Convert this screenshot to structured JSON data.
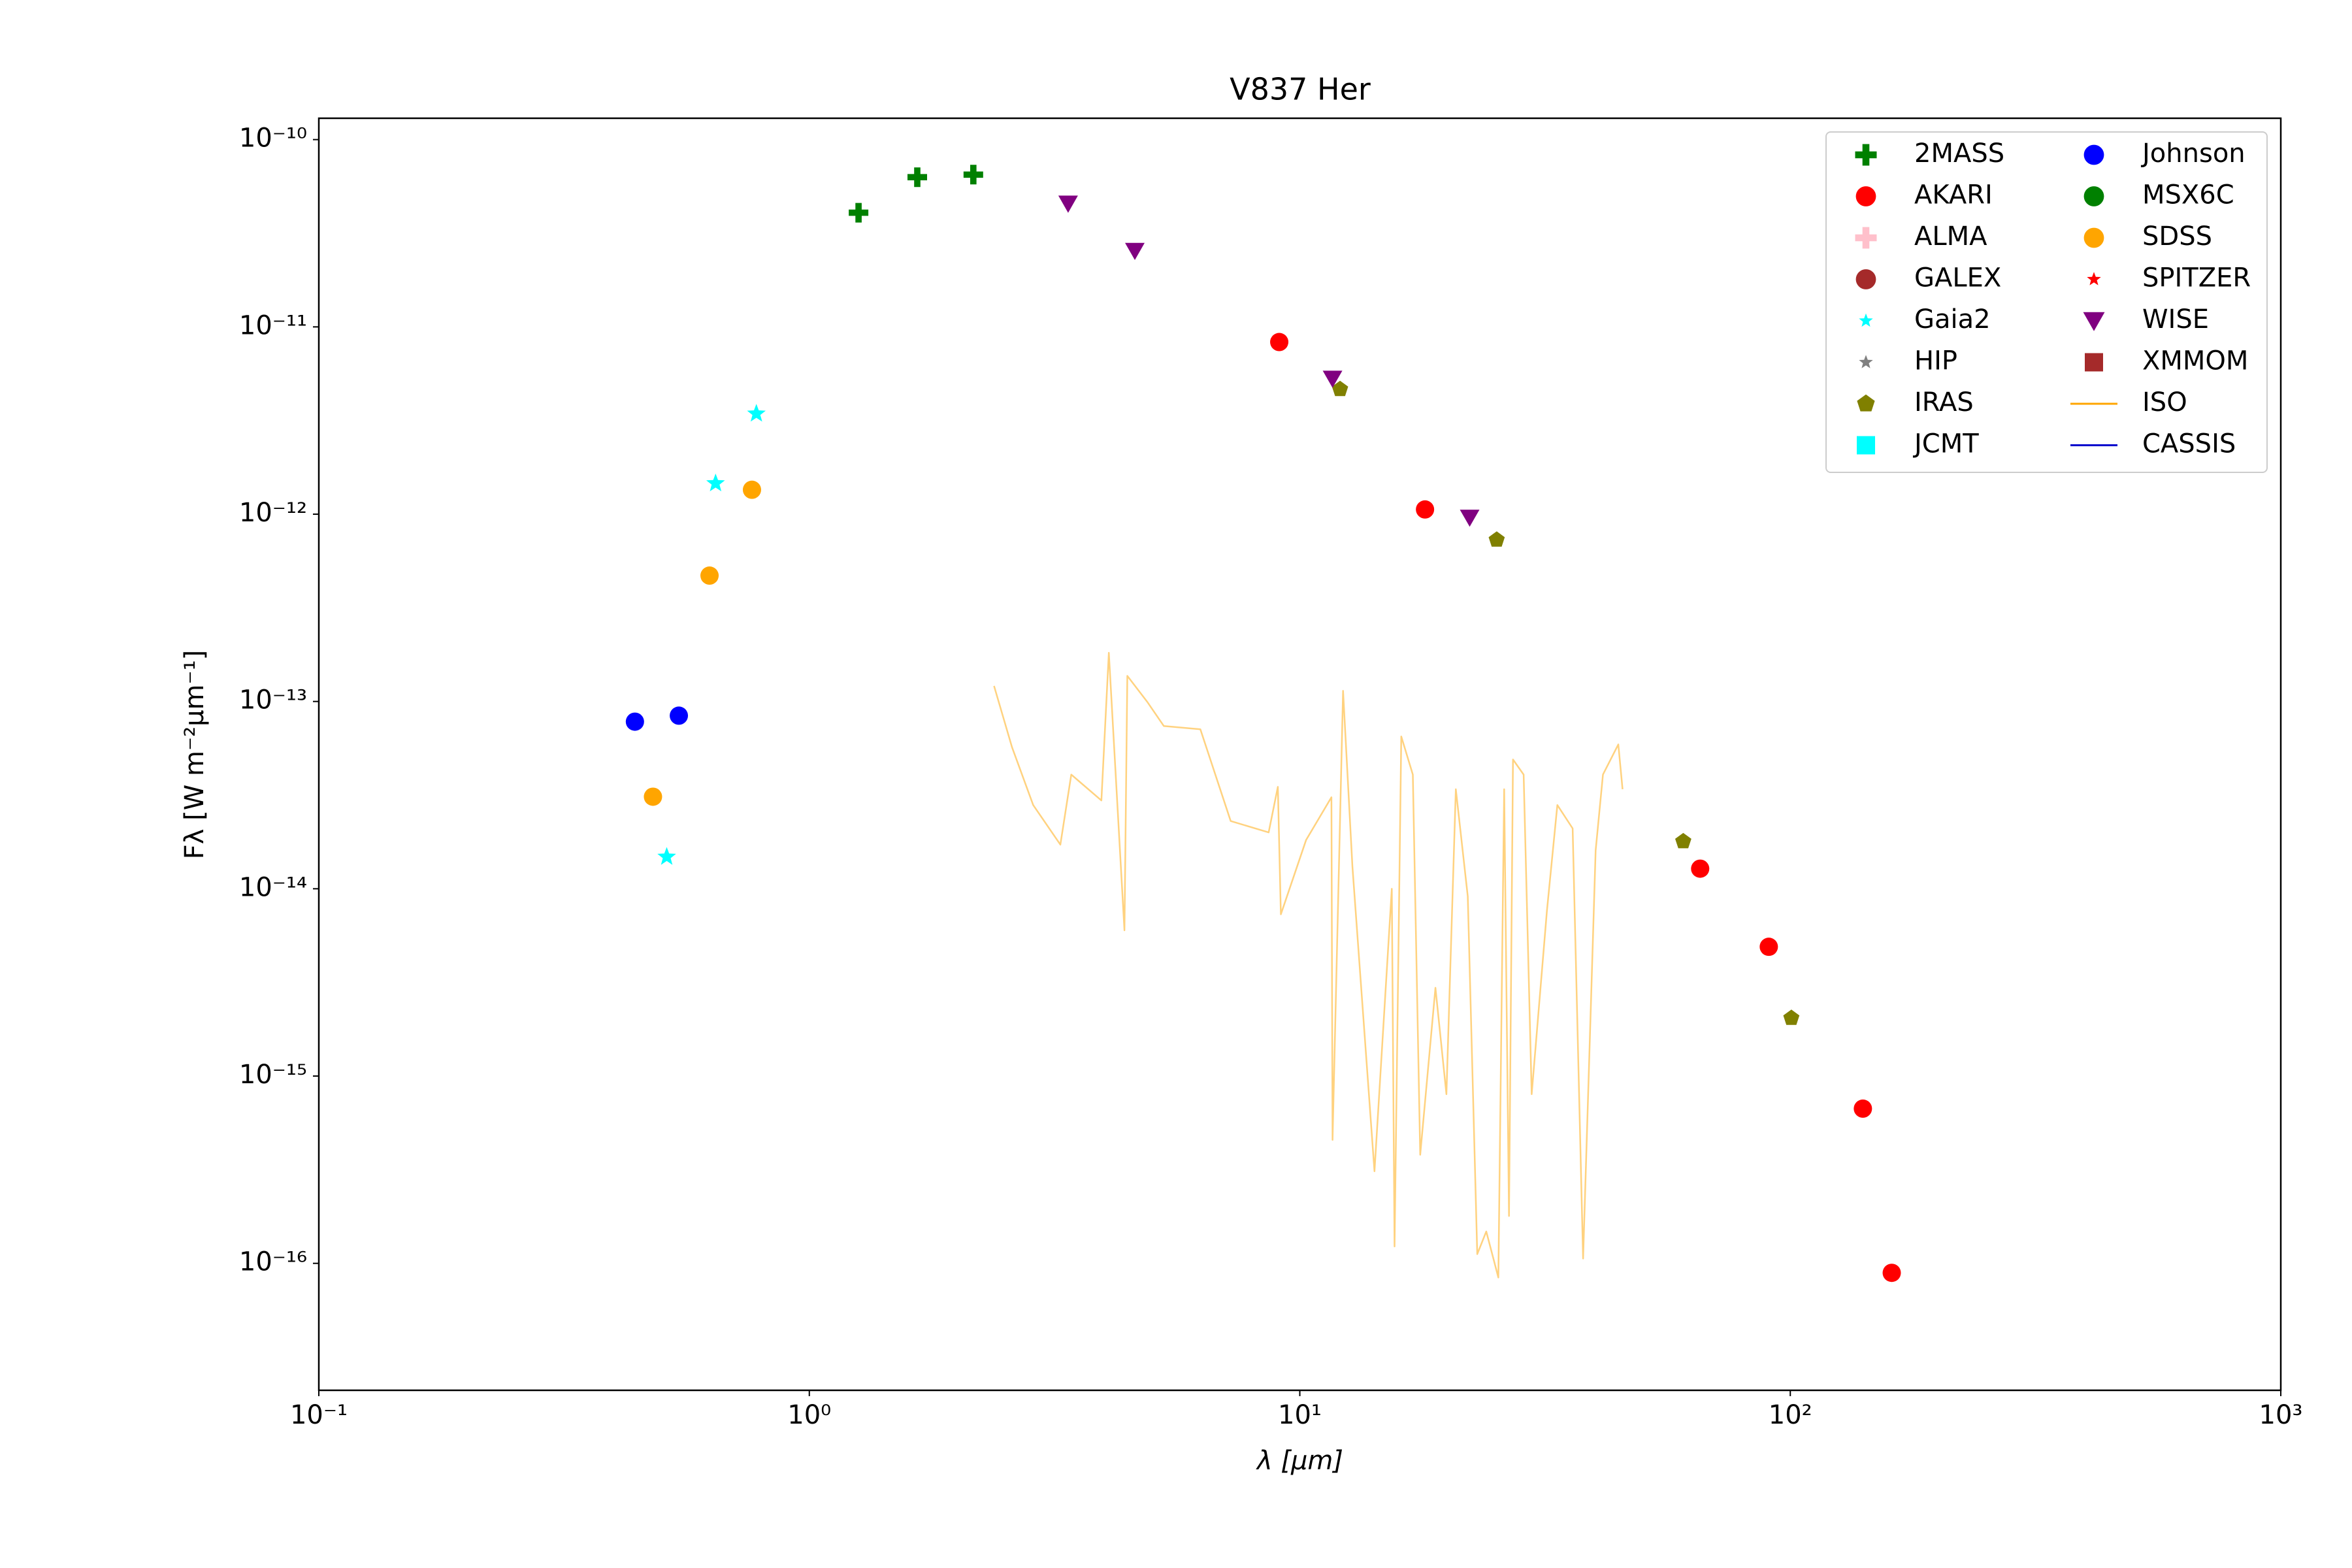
{
  "chart_data": {
    "type": "scatter",
    "title": "V837 Her",
    "xlabel": "λ [μm]",
    "ylabel": "Fλ [W m⁻²μm⁻¹]",
    "xscale": "log",
    "yscale": "log",
    "legend": "upper right",
    "legend_columns": 2,
    "xlim": [
      0.1,
      1000
    ],
    "ylim": [
      2.1e-17,
      1.3e-10
    ],
    "xticks": [
      {
        "value": 0.1,
        "label": "10⁻¹"
      },
      {
        "value": 1,
        "label": "10⁰"
      },
      {
        "value": 10,
        "label": "10¹"
      },
      {
        "value": 100,
        "label": "10²"
      },
      {
        "value": 1000,
        "label": "10³"
      }
    ],
    "yticks": [
      {
        "value": 1e-16,
        "label": "10⁻¹⁶"
      },
      {
        "value": 1e-15,
        "label": "10⁻¹⁵"
      },
      {
        "value": 1e-14,
        "label": "10⁻¹⁴"
      },
      {
        "value": 1e-13,
        "label": "10⁻¹³"
      },
      {
        "value": 1e-12,
        "label": "10⁻¹²"
      },
      {
        "value": 1e-11,
        "label": "10⁻¹¹"
      },
      {
        "value": 1e-10,
        "label": "10⁻¹⁰"
      }
    ],
    "series": [
      {
        "name": "2MASS",
        "color": "#008000",
        "marker": "plus",
        "x": [
          1.26,
          1.66,
          2.16
        ],
        "values": [
          4.07e-11,
          6.3e-11,
          6.5e-11
        ]
      },
      {
        "name": "AKARI",
        "color": "#ff0000",
        "marker": "circle",
        "x": [
          9.08,
          18.0,
          65.5,
          90.4,
          140.6,
          161
        ],
        "values": [
          8.3e-12,
          1.06e-12,
          1.28e-14,
          4.9e-15,
          6.7e-16,
          8.9e-17
        ]
      },
      {
        "name": "ALMA",
        "color": "#ffc0cb",
        "marker": "plus",
        "x": [],
        "values": []
      },
      {
        "name": "GALEX",
        "color": "#a52a2a",
        "marker": "circle",
        "x": [],
        "values": []
      },
      {
        "name": "Gaia2",
        "color": "#00ffff",
        "marker": "star",
        "x": [
          0.512,
          0.644,
          0.78
        ],
        "values": [
          1.48e-14,
          1.46e-12,
          3.44e-12
        ]
      },
      {
        "name": "HIP",
        "color": "#808080",
        "marker": "star",
        "x": [],
        "values": []
      },
      {
        "name": "IRAS",
        "color": "#808000",
        "marker": "pentagon",
        "x": [
          12.08,
          25.2,
          60.5,
          100.5
        ],
        "values": [
          4.65e-12,
          7.3e-13,
          1.79e-14,
          2.04e-15
        ]
      },
      {
        "name": "JCMT",
        "color": "#00ffff",
        "marker": "square",
        "x": [],
        "values": []
      },
      {
        "name": "Johnson",
        "color": "#0000ff",
        "marker": "circle",
        "x": [
          0.441,
          0.542
        ],
        "values": [
          7.8e-14,
          8.4e-14
        ]
      },
      {
        "name": "MSX6C",
        "color": "#008000",
        "marker": "circle",
        "x": [],
        "values": []
      },
      {
        "name": "SDSS",
        "color": "#ffa500",
        "marker": "circle",
        "x": [
          0.48,
          0.626,
          0.764
        ],
        "values": [
          3.1e-14,
          4.7e-13,
          1.35e-12
        ]
      },
      {
        "name": "SPITZER",
        "color": "#ff0000",
        "marker": "star",
        "x": [],
        "values": []
      },
      {
        "name": "WISE",
        "color": "#800080",
        "marker": "triangle-down",
        "x": [
          3.37,
          4.61,
          11.66,
          22.2
        ],
        "values": [
          4.56e-11,
          2.55e-11,
          5.3e-12,
          9.6e-13
        ]
      },
      {
        "name": "XMMOM",
        "color": "#a52a2a",
        "marker": "square",
        "x": [],
        "values": []
      },
      {
        "name": "ISO",
        "color": "#ffa500",
        "marker": "line",
        "alpha": 0.5,
        "x": [
          2.38,
          2.59,
          2.86,
          3.25,
          3.42,
          3.94,
          4.08,
          4.39,
          4.45,
          4.88,
          5.28,
          6.27,
          7.23,
          8.64,
          9.02,
          9.15,
          10.3,
          11.6,
          11.66,
          12.25,
          12.8,
          14.2,
          15.4,
          15.6,
          16.1,
          17.0,
          17.6,
          18.9,
          19.9,
          20.8,
          22.0,
          23.0,
          24.0,
          25.4,
          26.1,
          26.7,
          27.2,
          28.6,
          29.7,
          31.9,
          33.5,
          36.0,
          37.8,
          40.1,
          41.5,
          44.6,
          45.5
        ],
        "values": [
          1.21e-13,
          5.7e-14,
          2.8e-14,
          1.72e-14,
          4.07e-14,
          2.96e-14,
          1.82e-13,
          6e-15,
          1.37e-13,
          1e-13,
          7.4e-14,
          7.1e-14,
          2.3e-14,
          2e-14,
          3.5e-14,
          7.3e-15,
          1.82e-14,
          3.08e-14,
          4.56e-16,
          1.14e-13,
          1.32e-14,
          3.1e-16,
          1e-14,
          1.23e-16,
          6.5e-14,
          4.07e-14,
          3.8e-16,
          2.96e-15,
          8e-16,
          3.4e-14,
          9.1e-15,
          1.12e-16,
          1.48e-16,
          8.4e-17,
          3.4e-14,
          1.79e-16,
          4.9e-14,
          4.07e-14,
          8e-16,
          7.6e-15,
          2.8e-14,
          2.1e-14,
          1.06e-16,
          1.6e-14,
          4.07e-14,
          5.9e-14,
          3.4e-14
        ]
      },
      {
        "name": "CASSIS",
        "color": "#0000cd",
        "marker": "line",
        "x": [],
        "values": []
      }
    ]
  }
}
